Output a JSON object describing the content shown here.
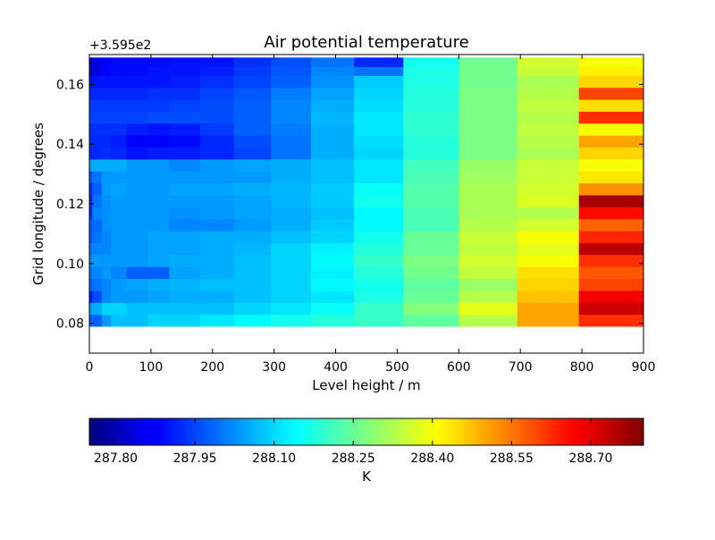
{
  "chart_data": {
    "type": "heatmap",
    "title": "Air potential temperature",
    "xlabel": "Level height / m",
    "ylabel": "Grid longitude / degrees",
    "y_offset_label": "+3.595e2",
    "xlim": [
      0,
      900
    ],
    "ylim": [
      0.07,
      0.17
    ],
    "x_ticks": [
      "0",
      "100",
      "200",
      "300",
      "400",
      "500",
      "600",
      "700",
      "800",
      "900"
    ],
    "x_tick_values": [
      0,
      100,
      200,
      300,
      400,
      500,
      600,
      700,
      800,
      900
    ],
    "y_ticks": [
      "0.08",
      "0.10",
      "0.12",
      "0.14",
      "0.16"
    ],
    "y_tick_values": [
      0.08,
      0.1,
      0.12,
      0.14,
      0.16
    ],
    "colorbar": {
      "label": "K",
      "min": 287.75,
      "max": 288.8,
      "ticks": [
        "287.80",
        "287.95",
        "288.10",
        "288.25",
        "288.40",
        "288.55",
        "288.70"
      ],
      "tick_values": [
        287.8,
        287.95,
        288.1,
        288.25,
        288.4,
        288.55,
        288.7
      ],
      "colormap": "jet"
    },
    "level_edges": [
      0,
      5,
      20,
      35,
      60,
      95,
      130,
      180,
      235,
      295,
      360,
      430,
      510,
      600,
      695,
      795,
      900
    ],
    "lon_range": [
      0.079,
      0.169
    ],
    "lon_bands": [
      {
        "from": 0.079,
        "to": 0.083,
        "values": [
          287.98,
          287.98,
          288.04,
          288.08,
          288.08,
          288.1,
          288.1,
          288.12,
          288.14,
          288.16,
          288.18,
          288.2,
          288.24,
          288.33,
          288.5,
          288.62
        ]
      },
      {
        "from": 0.083,
        "to": 0.087,
        "values": [
          288.04,
          288.06,
          288.1,
          288.1,
          288.08,
          288.08,
          288.08,
          288.08,
          288.1,
          288.12,
          288.15,
          288.2,
          288.28,
          288.38,
          288.5,
          288.72
        ]
      },
      {
        "from": 0.087,
        "to": 0.091,
        "values": [
          287.92,
          287.96,
          288.02,
          288.04,
          288.04,
          288.05,
          288.06,
          288.06,
          288.08,
          288.1,
          288.12,
          288.17,
          288.25,
          288.33,
          288.47,
          288.68
        ]
      },
      {
        "from": 0.091,
        "to": 0.095,
        "values": [
          287.98,
          288.0,
          288.02,
          288.04,
          288.05,
          288.06,
          288.07,
          288.08,
          288.08,
          288.1,
          288.14,
          288.16,
          288.24,
          288.3,
          288.45,
          288.6
        ]
      },
      {
        "from": 0.095,
        "to": 0.099,
        "values": [
          288.0,
          288.02,
          288.04,
          288.02,
          287.98,
          287.98,
          288.05,
          288.06,
          288.08,
          288.1,
          288.13,
          288.18,
          288.26,
          288.34,
          288.44,
          288.58
        ]
      },
      {
        "from": 0.099,
        "to": 0.103,
        "values": [
          288.02,
          288.04,
          288.04,
          288.04,
          288.04,
          288.05,
          288.06,
          288.06,
          288.08,
          288.1,
          288.14,
          288.2,
          288.27,
          288.36,
          288.4,
          288.62
        ]
      },
      {
        "from": 0.103,
        "to": 0.107,
        "values": [
          288.0,
          288.02,
          288.02,
          288.04,
          288.04,
          288.05,
          288.05,
          288.06,
          288.07,
          288.1,
          288.13,
          288.18,
          288.25,
          288.34,
          288.38,
          288.74
        ]
      },
      {
        "from": 0.107,
        "to": 0.111,
        "values": [
          287.97,
          288.0,
          288.02,
          288.04,
          288.04,
          288.05,
          288.05,
          288.06,
          288.06,
          288.08,
          288.1,
          288.16,
          288.25,
          288.35,
          288.4,
          288.63
        ]
      },
      {
        "from": 0.111,
        "to": 0.115,
        "values": [
          287.97,
          287.99,
          288.03,
          288.04,
          288.04,
          288.04,
          288.02,
          288.02,
          288.04,
          288.06,
          288.09,
          288.14,
          288.22,
          288.33,
          288.36,
          288.57
        ]
      },
      {
        "from": 0.115,
        "to": 0.119,
        "values": [
          287.93,
          288.02,
          288.03,
          288.04,
          288.04,
          288.04,
          288.03,
          288.04,
          288.05,
          288.06,
          288.08,
          288.14,
          288.22,
          288.32,
          288.33,
          288.66
        ]
      },
      {
        "from": 0.119,
        "to": 0.123,
        "values": [
          287.92,
          288.0,
          288.03,
          288.04,
          288.04,
          288.04,
          288.04,
          288.04,
          288.05,
          288.07,
          288.09,
          288.16,
          288.23,
          288.32,
          288.37,
          288.76
        ]
      },
      {
        "from": 0.123,
        "to": 0.127,
        "values": [
          287.93,
          287.98,
          288.04,
          288.05,
          288.04,
          288.04,
          288.05,
          288.05,
          288.06,
          288.07,
          288.09,
          288.15,
          288.23,
          288.32,
          288.36,
          288.52
        ]
      },
      {
        "from": 0.127,
        "to": 0.131,
        "values": [
          287.97,
          288.0,
          288.04,
          288.04,
          288.04,
          288.04,
          288.04,
          288.04,
          288.04,
          288.06,
          288.08,
          288.12,
          288.22,
          288.31,
          288.35,
          288.43
        ]
      },
      {
        "from": 0.131,
        "to": 0.135,
        "values": [
          288.05,
          288.06,
          288.06,
          288.06,
          288.04,
          288.04,
          288.02,
          288.04,
          288.05,
          288.06,
          288.08,
          288.12,
          288.21,
          288.3,
          288.35,
          288.4
        ]
      },
      {
        "from": 0.135,
        "to": 0.139,
        "values": [
          287.92,
          287.92,
          287.93,
          287.92,
          287.9,
          287.91,
          287.91,
          287.92,
          287.95,
          288.0,
          288.06,
          288.1,
          288.18,
          288.27,
          288.32,
          288.45
        ]
      },
      {
        "from": 0.139,
        "to": 0.143,
        "values": [
          287.92,
          287.92,
          287.92,
          287.91,
          287.88,
          287.88,
          287.89,
          287.92,
          287.96,
          288.0,
          288.06,
          288.11,
          288.18,
          288.27,
          288.33,
          288.5
        ]
      },
      {
        "from": 0.143,
        "to": 0.147,
        "values": [
          287.93,
          287.93,
          287.93,
          287.93,
          287.91,
          287.9,
          287.91,
          287.94,
          287.98,
          288.01,
          288.06,
          288.12,
          288.19,
          288.27,
          288.34,
          288.4
        ]
      },
      {
        "from": 0.147,
        "to": 0.151,
        "values": [
          287.95,
          287.95,
          287.95,
          287.95,
          287.95,
          287.96,
          287.96,
          287.96,
          287.98,
          288.02,
          288.07,
          288.12,
          288.19,
          288.27,
          288.33,
          288.62
        ]
      },
      {
        "from": 0.151,
        "to": 0.155,
        "values": [
          287.94,
          287.94,
          287.94,
          287.94,
          287.94,
          287.94,
          287.95,
          287.96,
          287.98,
          288.02,
          288.06,
          288.11,
          288.18,
          288.27,
          288.34,
          288.44
        ]
      },
      {
        "from": 0.155,
        "to": 0.159,
        "values": [
          287.92,
          287.92,
          287.92,
          287.92,
          287.92,
          287.93,
          287.93,
          287.95,
          287.97,
          288.01,
          288.05,
          288.1,
          288.18,
          288.27,
          288.33,
          288.6
        ]
      },
      {
        "from": 0.159,
        "to": 0.163,
        "values": [
          287.9,
          287.9,
          287.9,
          287.9,
          287.9,
          287.9,
          287.91,
          287.93,
          287.95,
          287.98,
          288.03,
          288.09,
          288.17,
          288.26,
          288.32,
          288.45
        ]
      },
      {
        "from": 0.163,
        "to": 0.166,
        "values": [
          287.82,
          287.85,
          287.88,
          287.89,
          287.89,
          287.9,
          287.9,
          287.91,
          287.94,
          287.97,
          288.02,
          288.0,
          288.17,
          288.26,
          288.35,
          288.42
        ]
      },
      {
        "from": 0.166,
        "to": 0.169,
        "values": [
          287.8,
          287.85,
          287.88,
          287.89,
          287.89,
          287.89,
          287.9,
          287.9,
          287.93,
          287.96,
          288.0,
          287.92,
          288.16,
          288.26,
          288.36,
          288.4
        ]
      }
    ]
  }
}
